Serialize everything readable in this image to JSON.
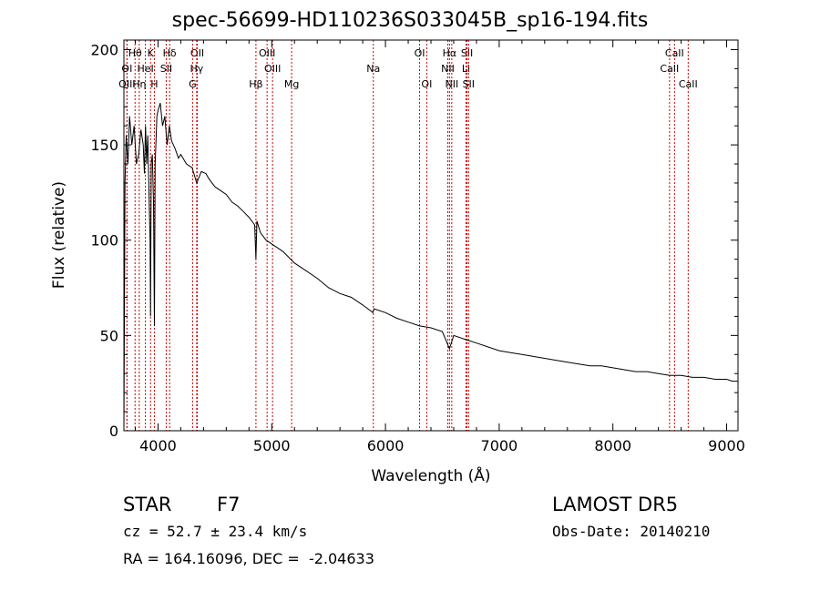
{
  "chart_data": {
    "type": "line",
    "title": "spec-56699-HD110236S033045B_sp16-194.fits",
    "xlabel": "Wavelength (Å)",
    "ylabel": "Flux (relative)",
    "xlim": [
      3700,
      9100
    ],
    "ylim": [
      0,
      205
    ],
    "x_ticks": [
      4000,
      5000,
      6000,
      7000,
      8000,
      9000
    ],
    "y_ticks": [
      0,
      50,
      100,
      150,
      200
    ],
    "grid": false,
    "line_color": "#000000",
    "marker_color": "#cc0000",
    "series": [
      {
        "x": [
          3700,
          3710,
          3720,
          3735,
          3750,
          3770,
          3790,
          3810,
          3830,
          3850,
          3870,
          3880,
          3890,
          3900,
          3910,
          3920,
          3930,
          3934,
          3940,
          3950,
          3960,
          3968,
          3975,
          3990,
          4000,
          4020,
          4040,
          4060,
          4080,
          4100,
          4120,
          4150,
          4180,
          4200,
          4250,
          4300,
          4340,
          4380,
          4420,
          4450,
          4500,
          4550,
          4600,
          4650,
          4700,
          4750,
          4800,
          4850,
          4861,
          4870,
          4900,
          4950,
          5000,
          5050,
          5100,
          5150,
          5200,
          5300,
          5400,
          5500,
          5600,
          5700,
          5800,
          5890,
          5900,
          6000,
          6100,
          6200,
          6300,
          6400,
          6500,
          6563,
          6600,
          6700,
          6800,
          6900,
          7000,
          7100,
          7200,
          7300,
          7400,
          7500,
          7600,
          7700,
          7800,
          7900,
          8000,
          8100,
          8200,
          8300,
          8400,
          8500,
          8600,
          8700,
          8800,
          8900,
          9000,
          9050,
          9100
        ],
        "y": [
          0,
          130,
          155,
          140,
          165,
          150,
          160,
          140,
          145,
          158,
          150,
          135,
          160,
          140,
          155,
          125,
          100,
          60,
          140,
          145,
          120,
          55,
          140,
          165,
          168,
          172,
          160,
          165,
          150,
          160,
          152,
          148,
          143,
          145,
          140,
          138,
          130,
          136,
          135,
          132,
          128,
          126,
          124,
          120,
          118,
          115,
          112,
          108,
          90,
          110,
          104,
          100,
          98,
          96,
          94,
          91,
          88,
          84,
          80,
          75,
          72,
          70,
          66,
          62,
          64,
          62,
          59,
          57,
          55,
          54,
          52,
          43,
          50,
          48,
          46,
          44,
          42,
          41,
          40,
          39,
          38,
          37,
          36,
          35,
          34,
          34,
          33,
          32,
          31,
          31,
          30,
          29,
          29,
          28,
          28,
          27,
          27,
          26,
          26
        ]
      }
    ],
    "line_markers": [
      {
        "label": "Hθ",
        "x": 3798,
        "row": 0
      },
      {
        "label": "K",
        "x": 3934,
        "row": 0
      },
      {
        "label": "Hδ",
        "x": 4102,
        "row": 0
      },
      {
        "label": "OII",
        "x": 4345,
        "row": 0
      },
      {
        "label": "OIII",
        "x": 4959,
        "row": 0
      },
      {
        "label": "OI",
        "x": 6300,
        "row": 0
      },
      {
        "label": "Hα",
        "x": 6563,
        "row": 0
      },
      {
        "label": "SII",
        "x": 6717,
        "row": 0
      },
      {
        "label": "CaII",
        "x": 8542,
        "row": 0
      },
      {
        "label": "OI",
        "x": 3727,
        "row": 1
      },
      {
        "label": "HeI",
        "x": 3889,
        "row": 1
      },
      {
        "label": "SII",
        "x": 4072,
        "row": 1
      },
      {
        "label": "Hγ",
        "x": 4340,
        "row": 1
      },
      {
        "label": "OIII",
        "x": 5007,
        "row": 1
      },
      {
        "label": "Na",
        "x": 5893,
        "row": 1
      },
      {
        "label": "NII",
        "x": 6548,
        "row": 1
      },
      {
        "label": "Li",
        "x": 6708,
        "row": 1
      },
      {
        "label": "CaII",
        "x": 8498,
        "row": 1
      },
      {
        "label": "OIII",
        "x": 3727,
        "row": 2
      },
      {
        "label": "Hη",
        "x": 3835,
        "row": 2
      },
      {
        "label": "H",
        "x": 3968,
        "row": 2
      },
      {
        "label": "G",
        "x": 4304,
        "row": 2
      },
      {
        "label": "Hβ",
        "x": 4861,
        "row": 2
      },
      {
        "label": "Mg",
        "x": 5175,
        "row": 2
      },
      {
        "label": "OI",
        "x": 6363,
        "row": 2
      },
      {
        "label": "NII",
        "x": 6583,
        "row": 2
      },
      {
        "label": "SII",
        "x": 6731,
        "row": 2
      },
      {
        "label": "CaII",
        "x": 8662,
        "row": 2
      }
    ]
  },
  "info": {
    "object_class": "STAR",
    "subclass": "F7",
    "survey": "LAMOST DR5",
    "redshift": "cz = 52.7 ± 23.4 km/s",
    "obs_date": "Obs-Date: 20140210",
    "coords": "RA = 164.16096, DEC =  -2.04633"
  }
}
